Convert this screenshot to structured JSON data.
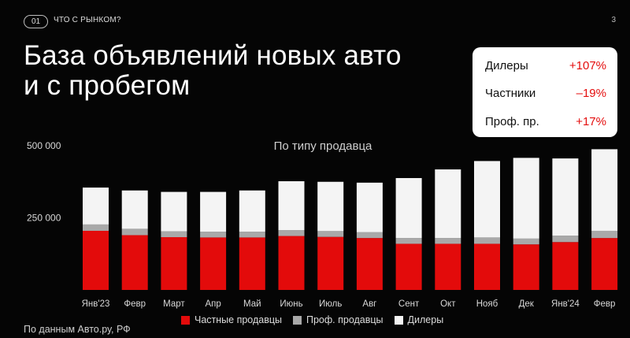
{
  "header": {
    "badge": "01",
    "section": "ЧТО С РЫНКОМ?",
    "page_number": "3"
  },
  "title_line1": "База объявлений новых авто",
  "title_line2": "и с пробегом",
  "stats": [
    {
      "label": "Дилеры",
      "value": "+107%"
    },
    {
      "label": "Частники",
      "value": "–19%"
    },
    {
      "label": "Проф. пр.",
      "value": "+17%"
    }
  ],
  "source": "По данным Авто.ру, РФ",
  "colors": {
    "private": "#e30b0b",
    "professional": "#a9a9a9",
    "dealers": "#f4f4f4",
    "accent": "#e40d0d"
  },
  "chart_data": {
    "type": "bar",
    "stacked": true,
    "title": "По типу продавца",
    "xlabel": "",
    "ylabel": "",
    "ylim": [
      0,
      500000
    ],
    "yticks": [
      {
        "value": 250000,
        "label": "250 000"
      },
      {
        "value": 500000,
        "label": "500 000"
      }
    ],
    "categories": [
      "Янв'23",
      "Февр",
      "Март",
      "Апр",
      "Май",
      "Июнь",
      "Июль",
      "Авг",
      "Сент",
      "Окт",
      "Нояб",
      "Дек",
      "Янв'24",
      "Февр"
    ],
    "series": [
      {
        "name": "Частные продавцы",
        "color": "#e30b0b",
        "values": [
          205000,
          190000,
          183000,
          182000,
          182000,
          187000,
          184000,
          180000,
          160000,
          160000,
          160000,
          158000,
          166000,
          180000
        ]
      },
      {
        "name": "Проф. продавцы",
        "color": "#a9a9a9",
        "values": [
          22000,
          22000,
          20000,
          20000,
          20000,
          20000,
          20000,
          20000,
          20000,
          20000,
          22000,
          20000,
          22000,
          25000
        ]
      },
      {
        "name": "Дилеры",
        "color": "#f4f4f4",
        "values": [
          128000,
          133000,
          137000,
          138000,
          143000,
          170000,
          171000,
          172000,
          208000,
          238000,
          265000,
          280000,
          268000,
          283000
        ]
      }
    ],
    "grid": false,
    "legend_position": "bottom"
  }
}
